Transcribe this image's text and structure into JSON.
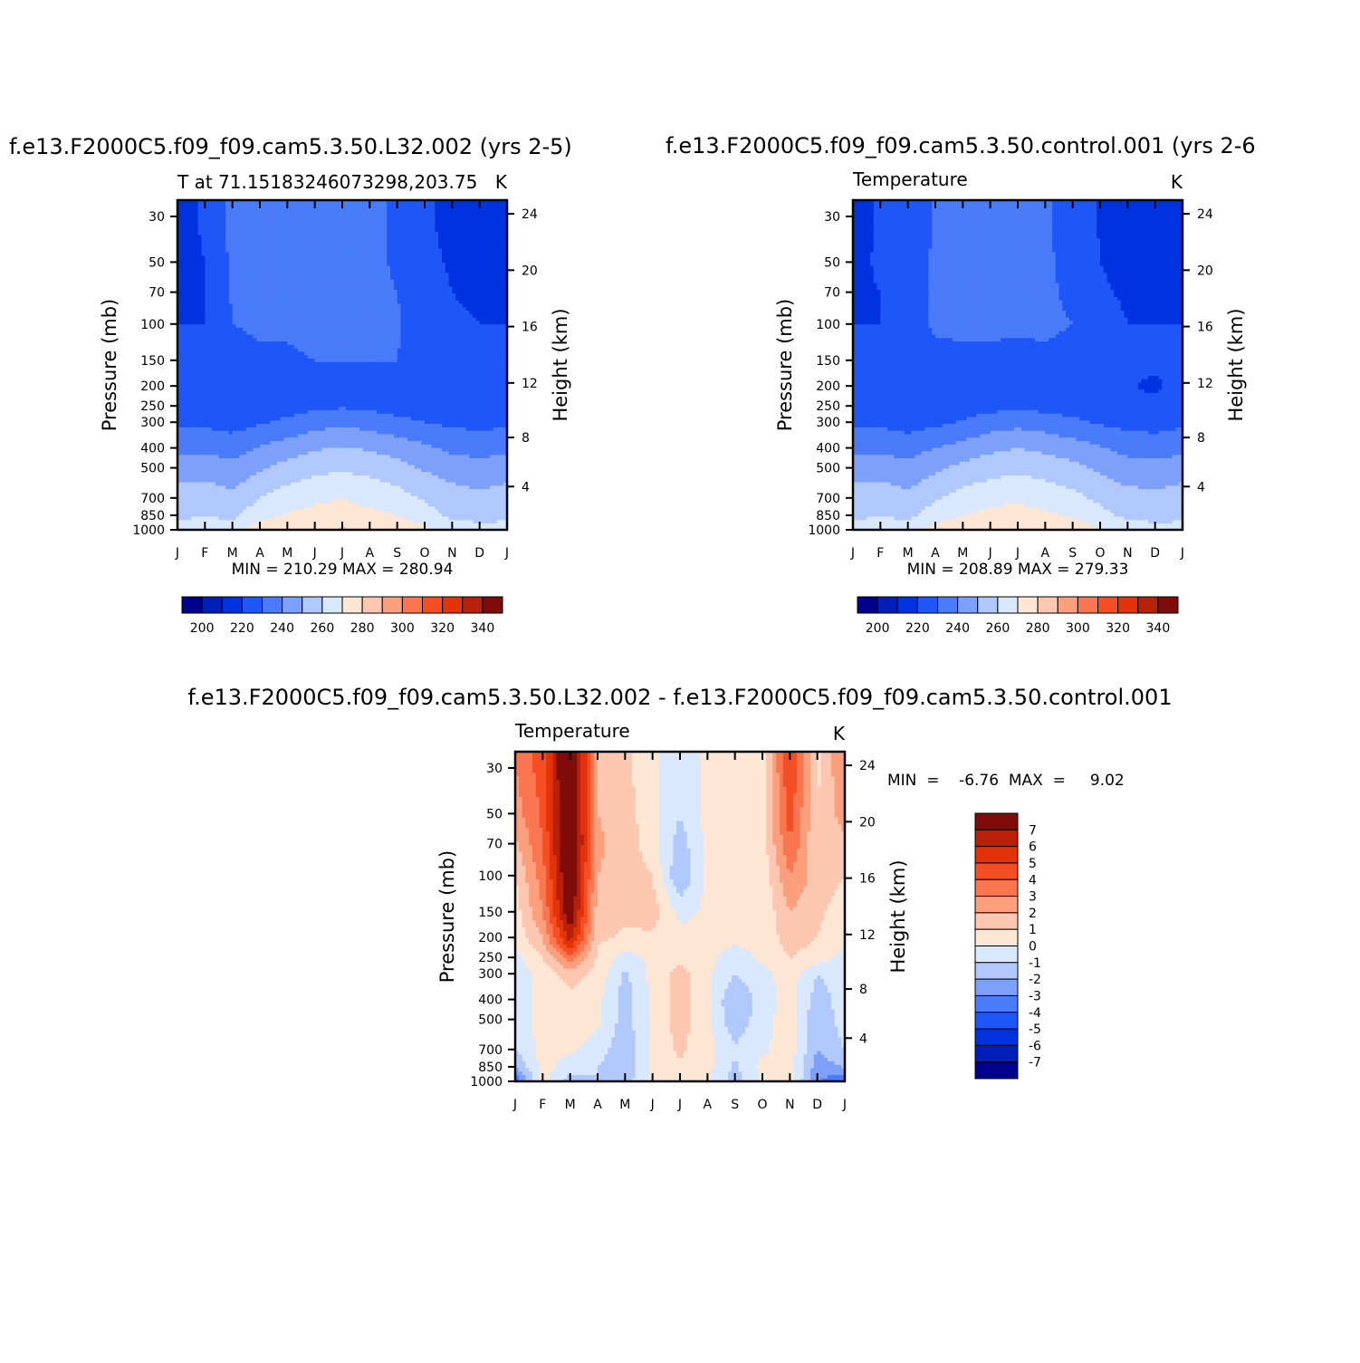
{
  "panels": [
    {
      "title": "f.e13.F2000C5.f09_f09.cam5.3.50.L32.002  (yrs  2-5)",
      "subtitle": "T  at  71.15183246073298,203.75",
      "units": "K",
      "ylabel": "Pressure  (mb)",
      "ylabel_right": "Height  (km)",
      "stats": "MIN  =  210.29  MAX  =  280.94"
    },
    {
      "title": "f.e13.F2000C5.f09_f09.cam5.3.50.control.001  (yrs  2-6",
      "subtitle": "Temperature",
      "units": "K",
      "ylabel": "Pressure  (mb)",
      "ylabel_right": "Height  (km)",
      "stats": "MIN  =  208.89  MAX  =  279.33"
    },
    {
      "title": "f.e13.F2000C5.f09_f09.cam5.3.50.L32.002  -  f.e13.F2000C5.f09_f09.cam5.3.50.control.001",
      "subtitle": "Temperature",
      "units": "K",
      "ylabel": "Pressure  (mb)",
      "ylabel_right": "Height  (km)",
      "stats": "MIN  =    -6.76  MAX  =     9.02"
    }
  ],
  "chart_data": [
    {
      "type": "heatmap",
      "title": "f.e13.F2000C5.f09_f09.cam5.3.50.L32.002  (yrs  2-5)",
      "subtitle": "T  at  71.15183246073298,203.75",
      "x_ticks": [
        "J",
        "F",
        "M",
        "A",
        "M",
        "J",
        "J",
        "A",
        "S",
        "O",
        "N",
        "D",
        "J"
      ],
      "y_ticks": [
        "30",
        "50",
        "70",
        "100",
        "150",
        "200",
        "250",
        "300",
        "400",
        "500",
        "700",
        "850",
        "1000"
      ],
      "y_ticks_right": [
        "4",
        "8",
        "12",
        "16",
        "20",
        "24"
      ],
      "ylabel": "Pressure  (mb)",
      "ylabel_right": "Height  (km)",
      "y_scale": "log",
      "ylim": [
        1000,
        25
      ],
      "units": "K",
      "min": 210.29,
      "max": 280.94,
      "months": [
        1,
        2,
        3,
        4,
        5,
        6,
        7,
        8,
        9,
        10,
        11,
        12,
        13
      ],
      "pressure_levels": [
        1000,
        850,
        700,
        500,
        400,
        300,
        250,
        200,
        150,
        100,
        70,
        50,
        30,
        25
      ],
      "values": [
        [
          262,
          263,
          266,
          276,
          277,
          279,
          281,
          279,
          277,
          272,
          266,
          262,
          262
        ],
        [
          259,
          260,
          258,
          266,
          271,
          274,
          275,
          273,
          270,
          264,
          258,
          258,
          259
        ],
        [
          255,
          256,
          253,
          260,
          265,
          268,
          270,
          267,
          264,
          259,
          255,
          253,
          255
        ],
        [
          245,
          246,
          243,
          249,
          254,
          257,
          259,
          257,
          254,
          249,
          245,
          243,
          245
        ],
        [
          238,
          238,
          236,
          241,
          245,
          249,
          251,
          249,
          246,
          242,
          238,
          237,
          238
        ],
        [
          228,
          228,
          226,
          229,
          232,
          236,
          238,
          236,
          233,
          230,
          228,
          227,
          228
        ],
        [
          225,
          225,
          225,
          225,
          226,
          228,
          229,
          228,
          226,
          225,
          224,
          224,
          225
        ],
        [
          224,
          224,
          225,
          225,
          225,
          225,
          226,
          226,
          225,
          225,
          224,
          224,
          224
        ],
        [
          222,
          222,
          227,
          229,
          229,
          230,
          230,
          230,
          230,
          225,
          223,
          222,
          222
        ],
        [
          220,
          220,
          230,
          231,
          231,
          232,
          232,
          232,
          231,
          225,
          221,
          220,
          220
        ],
        [
          219,
          220,
          231,
          232,
          232,
          232,
          232,
          232,
          230,
          224,
          220,
          219,
          219
        ],
        [
          218,
          220,
          232,
          233,
          233,
          233,
          233,
          232,
          229,
          222,
          219,
          218,
          218
        ],
        [
          217,
          221,
          233,
          234,
          234,
          234,
          234,
          233,
          228,
          221,
          218,
          217,
          217
        ],
        [
          217,
          221,
          233,
          234,
          234,
          234,
          234,
          233,
          228,
          221,
          218,
          217,
          217
        ]
      ],
      "colorbar": {
        "labels": [
          "200",
          "220",
          "240",
          "260",
          "280",
          "300",
          "320",
          "340"
        ],
        "levels": [
          190,
          200,
          210,
          220,
          230,
          240,
          250,
          260,
          270,
          280,
          290,
          300,
          310,
          320,
          330,
          340
        ],
        "colors": [
          "#00008f",
          "#001fb8",
          "#0032e0",
          "#1f56f7",
          "#4a7bfa",
          "#7da0fa",
          "#b1c8fc",
          "#d9e8fd",
          "#fde6d4",
          "#fcc6b0",
          "#fb9f7c",
          "#fa7650",
          "#f54e24",
          "#e3330a",
          "#b8200a",
          "#7f0b0b"
        ]
      }
    },
    {
      "type": "heatmap",
      "title": "f.e13.F2000C5.f09_f09.cam5.3.50.control.001  (yrs  2-6",
      "subtitle": "Temperature",
      "x_ticks": [
        "J",
        "F",
        "M",
        "A",
        "M",
        "J",
        "J",
        "A",
        "S",
        "O",
        "N",
        "D",
        "J"
      ],
      "y_ticks": [
        "30",
        "50",
        "70",
        "100",
        "150",
        "200",
        "250",
        "300",
        "400",
        "500",
        "700",
        "850",
        "1000"
      ],
      "y_ticks_right": [
        "4",
        "8",
        "12",
        "16",
        "20",
        "24"
      ],
      "ylabel": "Pressure  (mb)",
      "ylabel_right": "Height  (km)",
      "y_scale": "log",
      "ylim": [
        1000,
        25
      ],
      "units": "K",
      "min": 208.89,
      "max": 279.33,
      "months": [
        1,
        2,
        3,
        4,
        5,
        6,
        7,
        8,
        9,
        10,
        11,
        12,
        13
      ],
      "pressure_levels": [
        1000,
        850,
        700,
        500,
        400,
        300,
        250,
        200,
        150,
        100,
        70,
        50,
        30,
        25
      ],
      "values": [
        [
          262,
          263,
          266,
          275,
          276,
          278,
          279,
          278,
          276,
          271,
          265,
          262,
          262
        ],
        [
          259,
          260,
          258,
          265,
          270,
          273,
          274,
          272,
          269,
          263,
          258,
          258,
          259
        ],
        [
          255,
          256,
          253,
          259,
          264,
          267,
          269,
          266,
          263,
          258,
          254,
          253,
          255
        ],
        [
          245,
          246,
          243,
          248,
          253,
          256,
          258,
          256,
          253,
          248,
          244,
          243,
          245
        ],
        [
          238,
          238,
          236,
          240,
          244,
          248,
          250,
          248,
          245,
          241,
          237,
          236,
          238
        ],
        [
          228,
          228,
          226,
          228,
          231,
          235,
          237,
          235,
          232,
          229,
          227,
          226,
          228
        ],
        [
          225,
          225,
          225,
          225,
          226,
          227,
          228,
          227,
          226,
          224,
          223,
          223,
          225
        ],
        [
          224,
          224,
          224,
          224,
          225,
          225,
          226,
          225,
          224,
          224,
          221,
          218,
          224
        ],
        [
          222,
          222,
          225,
          228,
          229,
          229,
          228,
          229,
          228,
          224,
          222,
          222,
          222
        ],
        [
          220,
          220,
          227,
          231,
          231,
          231,
          231,
          231,
          230,
          223,
          220,
          220,
          220
        ],
        [
          219,
          220,
          226,
          231,
          231,
          231,
          231,
          231,
          229,
          221,
          219,
          219,
          219
        ],
        [
          218,
          221,
          226,
          231,
          232,
          232,
          232,
          231,
          228,
          220,
          218,
          218,
          218
        ],
        [
          217,
          221,
          225,
          231,
          232,
          232,
          232,
          231,
          227,
          219,
          217,
          217,
          217
        ],
        [
          217,
          221,
          225,
          231,
          232,
          232,
          232,
          231,
          227,
          219,
          217,
          217,
          217
        ]
      ],
      "colorbar": {
        "labels": [
          "200",
          "220",
          "240",
          "260",
          "280",
          "300",
          "320",
          "340"
        ],
        "levels": [
          190,
          200,
          210,
          220,
          230,
          240,
          250,
          260,
          270,
          280,
          290,
          300,
          310,
          320,
          330,
          340
        ],
        "colors": [
          "#00008f",
          "#001fb8",
          "#0032e0",
          "#1f56f7",
          "#4a7bfa",
          "#7da0fa",
          "#b1c8fc",
          "#d9e8fd",
          "#fde6d4",
          "#fcc6b0",
          "#fb9f7c",
          "#fa7650",
          "#f54e24",
          "#e3330a",
          "#b8200a",
          "#7f0b0b"
        ]
      }
    },
    {
      "type": "heatmap",
      "title": "f.e13.F2000C5.f09_f09.cam5.3.50.L32.002  -  f.e13.F2000C5.f09_f09.cam5.3.50.control.001",
      "subtitle": "Temperature",
      "x_ticks": [
        "J",
        "F",
        "M",
        "A",
        "M",
        "J",
        "J",
        "A",
        "S",
        "O",
        "N",
        "D",
        "J"
      ],
      "y_ticks": [
        "30",
        "50",
        "70",
        "100",
        "150",
        "200",
        "250",
        "300",
        "400",
        "500",
        "700",
        "850",
        "1000"
      ],
      "y_ticks_right": [
        "4",
        "8",
        "12",
        "16",
        "20",
        "24"
      ],
      "ylabel": "Pressure  (mb)",
      "ylabel_right": "Height  (km)",
      "y_scale": "log",
      "ylim": [
        1000,
        25
      ],
      "units": "K",
      "min": -6.76,
      "max": 9.02,
      "months": [
        1,
        2,
        3,
        4,
        5,
        6,
        7,
        8,
        9,
        10,
        11,
        12,
        13
      ],
      "pressure_levels": [
        1000,
        850,
        700,
        500,
        400,
        300,
        250,
        200,
        150,
        100,
        70,
        50,
        30,
        25
      ],
      "values": [
        [
          -4.0,
          0.3,
          -1.5,
          -1.0,
          -1.5,
          0.3,
          0.5,
          0.2,
          -1.5,
          0.2,
          0.4,
          -3.0,
          -4.0
        ],
        [
          -2.0,
          0.4,
          -0.5,
          -1.0,
          -1.8,
          0.3,
          0.8,
          0.3,
          -1.2,
          0.3,
          0.5,
          -2.5,
          -2.0
        ],
        [
          -1.0,
          0.4,
          0.2,
          -0.5,
          -1.8,
          0.3,
          1.2,
          0.3,
          -0.8,
          -0.2,
          0.5,
          -2.0,
          -1.0
        ],
        [
          -0.5,
          0.3,
          0.4,
          0.3,
          -1.5,
          0.3,
          1.4,
          0.3,
          -1.8,
          -0.3,
          0.5,
          -1.8,
          -0.5
        ],
        [
          -0.5,
          0.3,
          0.6,
          0.3,
          -1.5,
          0.3,
          1.5,
          0.2,
          -2.0,
          -0.5,
          0.4,
          -1.5,
          -0.5
        ],
        [
          -0.5,
          0.3,
          1.5,
          0.6,
          -1.2,
          0.3,
          1.5,
          0.2,
          -1.0,
          -0.3,
          0.5,
          -1.0,
          -0.5
        ],
        [
          -0.3,
          1.0,
          3.5,
          0.8,
          -0.5,
          0.3,
          0.6,
          0.3,
          -0.5,
          0.2,
          1.0,
          0.5,
          -0.3
        ],
        [
          0.3,
          2.0,
          6.5,
          1.2,
          0.8,
          0.8,
          0.3,
          0.4,
          0.3,
          0.3,
          1.5,
          1.0,
          0.3
        ],
        [
          0.5,
          3.0,
          8.0,
          1.5,
          1.2,
          1.5,
          -0.3,
          0.2,
          0.3,
          0.2,
          2.0,
          1.2,
          0.5
        ],
        [
          1.0,
          3.5,
          8.5,
          2.0,
          1.5,
          1.0,
          -2.0,
          0.3,
          0.3,
          0.2,
          3.0,
          1.5,
          1.0
        ],
        [
          1.8,
          4.0,
          9.0,
          2.2,
          1.5,
          0.5,
          -1.5,
          0.3,
          0.2,
          0.5,
          4.0,
          1.0,
          1.8
        ],
        [
          2.5,
          4.2,
          9.0,
          2.0,
          1.5,
          0.3,
          -1.0,
          0.3,
          0.2,
          0.5,
          4.5,
          1.0,
          2.5
        ],
        [
          3.0,
          4.5,
          9.0,
          2.0,
          1.2,
          0.3,
          -0.8,
          0.3,
          0.2,
          0.5,
          5.0,
          0.8,
          3.0
        ],
        [
          3.0,
          4.5,
          9.0,
          2.0,
          1.2,
          0.3,
          -0.8,
          0.3,
          0.2,
          0.5,
          5.0,
          0.8,
          3.0
        ]
      ],
      "colorbar": {
        "labels": [
          "7",
          "6",
          "5",
          "4",
          "3",
          "2",
          "1",
          "0",
          "-1",
          "-2",
          "-3",
          "-4",
          "-5",
          "-6",
          "-7"
        ],
        "levels": [
          8,
          7,
          6,
          5,
          4,
          3,
          2,
          1,
          0,
          -1,
          -2,
          -3,
          -4,
          -5,
          -6,
          -7,
          -8
        ],
        "colors": [
          "#7f0b0b",
          "#b8200a",
          "#e3330a",
          "#f54e24",
          "#fa7650",
          "#fb9f7c",
          "#fcc6b0",
          "#fde6d4",
          "#d9e8fd",
          "#b1c8fc",
          "#7da0fa",
          "#4a7bfa",
          "#1f56f7",
          "#0032e0",
          "#001fb8",
          "#00008f"
        ]
      }
    }
  ]
}
